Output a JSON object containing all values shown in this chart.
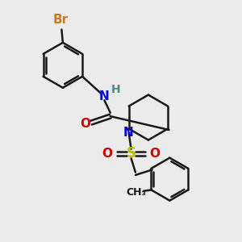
{
  "bg_color": "#ebebeb",
  "line_color": "#1a1a1a",
  "bond_width": 1.8,
  "atom_colors": {
    "Br": "#cc7722",
    "O": "#cc0000",
    "N": "#0000cc",
    "S": "#bbbb00",
    "H": "#4a8a8a",
    "C": "#1a1a1a"
  },
  "font_size": 11,
  "font_size_h": 10
}
